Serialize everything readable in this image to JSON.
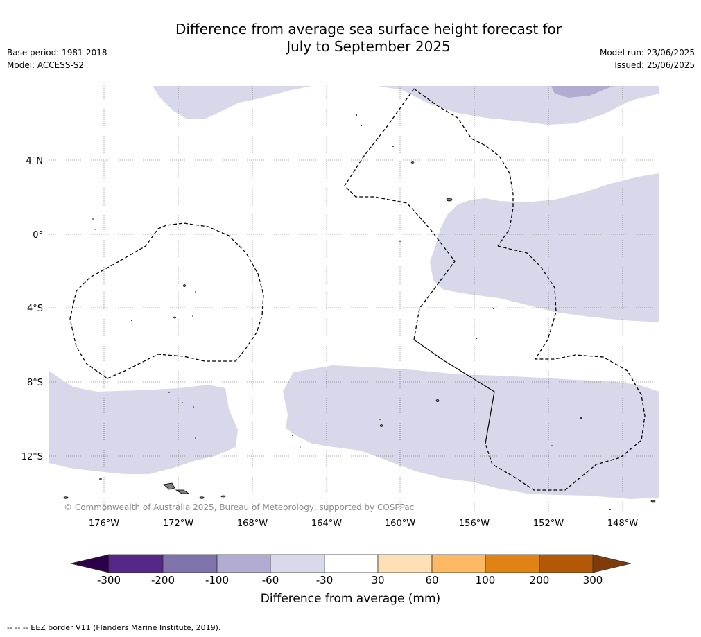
{
  "title_line1": "Difference from average sea surface height forecast for",
  "title_line2": "July to September 2025",
  "meta_left": {
    "base_period": "Base period: 1981-2018",
    "model": "Model: ACCESS-S2"
  },
  "meta_right": {
    "model_run": "Model run: 23/06/2025",
    "issued": "Issued: 25/06/2025"
  },
  "map": {
    "lat_labels": [
      "4°N",
      "0°",
      "4°S",
      "8°S",
      "12°S"
    ],
    "lon_labels": [
      "176°W",
      "172°W",
      "168°W",
      "164°W",
      "160°W",
      "156°W",
      "152°W",
      "148°W"
    ],
    "copyright": "© Commonwealth of Australia 2025, Bureau of Meteorology, supported by COSPPac",
    "colors": {
      "anomaly_neg_30_60": "#d8d8ea",
      "anomaly_neg_60_100": "#b2abd2",
      "land": "#808080",
      "eez": "#000000",
      "grid": "#444444"
    }
  },
  "colorbar": {
    "ticks": [
      "-300",
      "-200",
      "-100",
      "-60",
      "-30",
      "30",
      "60",
      "100",
      "200",
      "300"
    ],
    "colors": [
      "#2d004b",
      "#542788",
      "#8073ac",
      "#b2abd2",
      "#d8daeb",
      "#ffffff",
      "#fee0b6",
      "#fdb863",
      "#e08214",
      "#b35806",
      "#7f3b08"
    ],
    "label": "Difference from average (mm)"
  },
  "footer": "--  --  -- EEZ border V11 (Flanders Marine Institute, 2019)."
}
